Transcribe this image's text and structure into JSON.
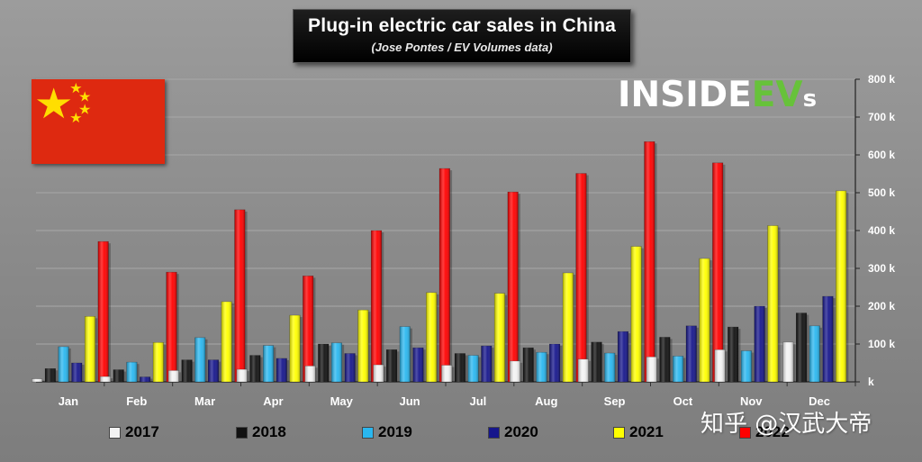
{
  "title": "Plug-in electric car sales in China",
  "subtitle": "(Jose Pontes / EV Volumes data)",
  "logo": {
    "part1": "INSIDE",
    "part2": "EV",
    "part3": "s"
  },
  "watermark": "知乎 @汉武大帝",
  "colors": {
    "2017": "#f2f2f2",
    "2018": "#111111",
    "2019": "#2ab7ef",
    "2020": "#16168c",
    "2021": "#ffff00",
    "2022": "#ff0000"
  },
  "chart_data": {
    "type": "bar",
    "categories": [
      "Jan",
      "Feb",
      "Mar",
      "Apr",
      "May",
      "Jun",
      "Jul",
      "Aug",
      "Sep",
      "Oct",
      "Nov",
      "Dec"
    ],
    "ylim": [
      0,
      800000
    ],
    "yticks": [
      0,
      100000,
      200000,
      300000,
      400000,
      500000,
      600000,
      700000,
      800000
    ],
    "ytick_labels": [
      "k",
      "100 k",
      "200 k",
      "300 k",
      "400 k",
      "500 k",
      "600 k",
      "700 k",
      "800 k"
    ],
    "grid": true,
    "legend": "bottom",
    "series": [
      {
        "name": "2017",
        "values": [
          8000,
          14000,
          30000,
          33000,
          42000,
          45000,
          44000,
          55000,
          60000,
          66000,
          85000,
          105000
        ]
      },
      {
        "name": "2018",
        "values": [
          35000,
          32000,
          58000,
          70000,
          100000,
          85000,
          75000,
          90000,
          105000,
          118000,
          145000,
          182000
        ]
      },
      {
        "name": "2019",
        "values": [
          93000,
          52000,
          117000,
          96000,
          103000,
          146000,
          70000,
          78000,
          76000,
          68000,
          82000,
          148000
        ]
      },
      {
        "name": "2020",
        "values": [
          50000,
          13000,
          58000,
          62000,
          75000,
          90000,
          95000,
          100000,
          133000,
          148000,
          200000,
          226000
        ]
      },
      {
        "name": "2021",
        "values": [
          173000,
          104000,
          212000,
          176000,
          190000,
          236000,
          234000,
          288000,
          358000,
          326000,
          413000,
          505000
        ]
      },
      {
        "name": "2022",
        "values": [
          371000,
          290000,
          455000,
          280000,
          400000,
          564000,
          502000,
          551000,
          635000,
          579000,
          null,
          null
        ]
      }
    ]
  }
}
